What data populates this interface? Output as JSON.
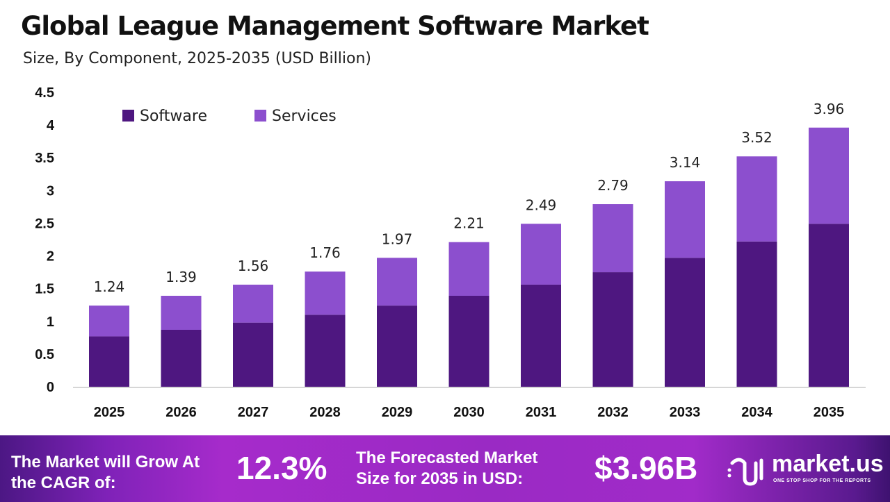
{
  "chart_data": {
    "type": "bar",
    "stacked": true,
    "title": "Global League Management Software Market",
    "subtitle": "Size, By Component, 2025-2035 (USD Billion)",
    "categories": [
      "2025",
      "2026",
      "2027",
      "2028",
      "2029",
      "2030",
      "2031",
      "2032",
      "2033",
      "2034",
      "2035"
    ],
    "series": [
      {
        "name": "Software",
        "color": "#4e1780",
        "values": [
          0.77,
          0.87,
          0.98,
          1.1,
          1.24,
          1.39,
          1.56,
          1.75,
          1.97,
          2.22,
          2.49
        ]
      },
      {
        "name": "Services",
        "color": "#8c4fce",
        "values": [
          0.47,
          0.52,
          0.58,
          0.66,
          0.73,
          0.82,
          0.93,
          1.04,
          1.17,
          1.3,
          1.47
        ]
      }
    ],
    "totals": [
      "1.24",
      "1.39",
      "1.56",
      "1.76",
      "1.97",
      "2.21",
      "2.49",
      "2.79",
      "3.14",
      "3.52",
      "3.96"
    ],
    "ylim": [
      0,
      4.5
    ],
    "yticks": [
      "0",
      "0.5",
      "1",
      "1.5",
      "2",
      "2.5",
      "3",
      "3.5",
      "4",
      "4.5"
    ],
    "grid": false,
    "legend_position": "top-left"
  },
  "footer": {
    "cagr_label": "The Market will Grow At the CAGR of:",
    "cagr_value": "12.3%",
    "forecast_label": "The Forecasted Market Size for 2035 in USD:",
    "forecast_value": "$3.96B",
    "logo_text": "market.us",
    "logo_tagline": "ONE STOP SHOP FOR THE REPORTS"
  }
}
